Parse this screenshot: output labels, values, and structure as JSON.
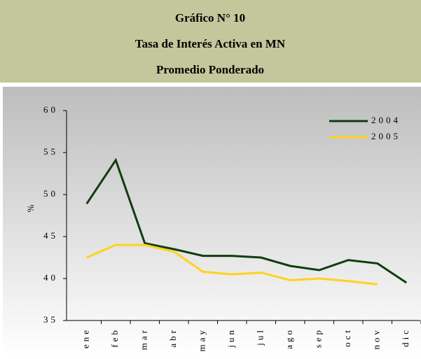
{
  "chart_data": {
    "type": "line",
    "title": [
      "Gráfico N° 10",
      "Tasa de Interés Activa en MN",
      "Promedio Ponderado"
    ],
    "y_label": "%",
    "categories": [
      "ene",
      "feb",
      "mar",
      "abr",
      "may",
      "jun",
      "jul",
      "ago",
      "sep",
      "oct",
      "nov",
      "dic"
    ],
    "series": [
      {
        "name": "2004",
        "color": "#0f3d0f",
        "values": [
          48.9,
          54.1,
          44.2,
          43.5,
          42.7,
          42.7,
          42.5,
          41.5,
          41.0,
          42.2,
          41.8,
          39.5
        ]
      },
      {
        "name": "2005",
        "color": "#ffd21a",
        "values": [
          42.5,
          44.0,
          44.0,
          43.2,
          40.8,
          40.5,
          40.7,
          39.8,
          40.0,
          39.7,
          39.3,
          null
        ]
      }
    ],
    "ylim": [
      35,
      60
    ],
    "yticks": [
      35,
      40,
      45,
      50,
      55,
      60
    ],
    "legend": "upper right"
  }
}
